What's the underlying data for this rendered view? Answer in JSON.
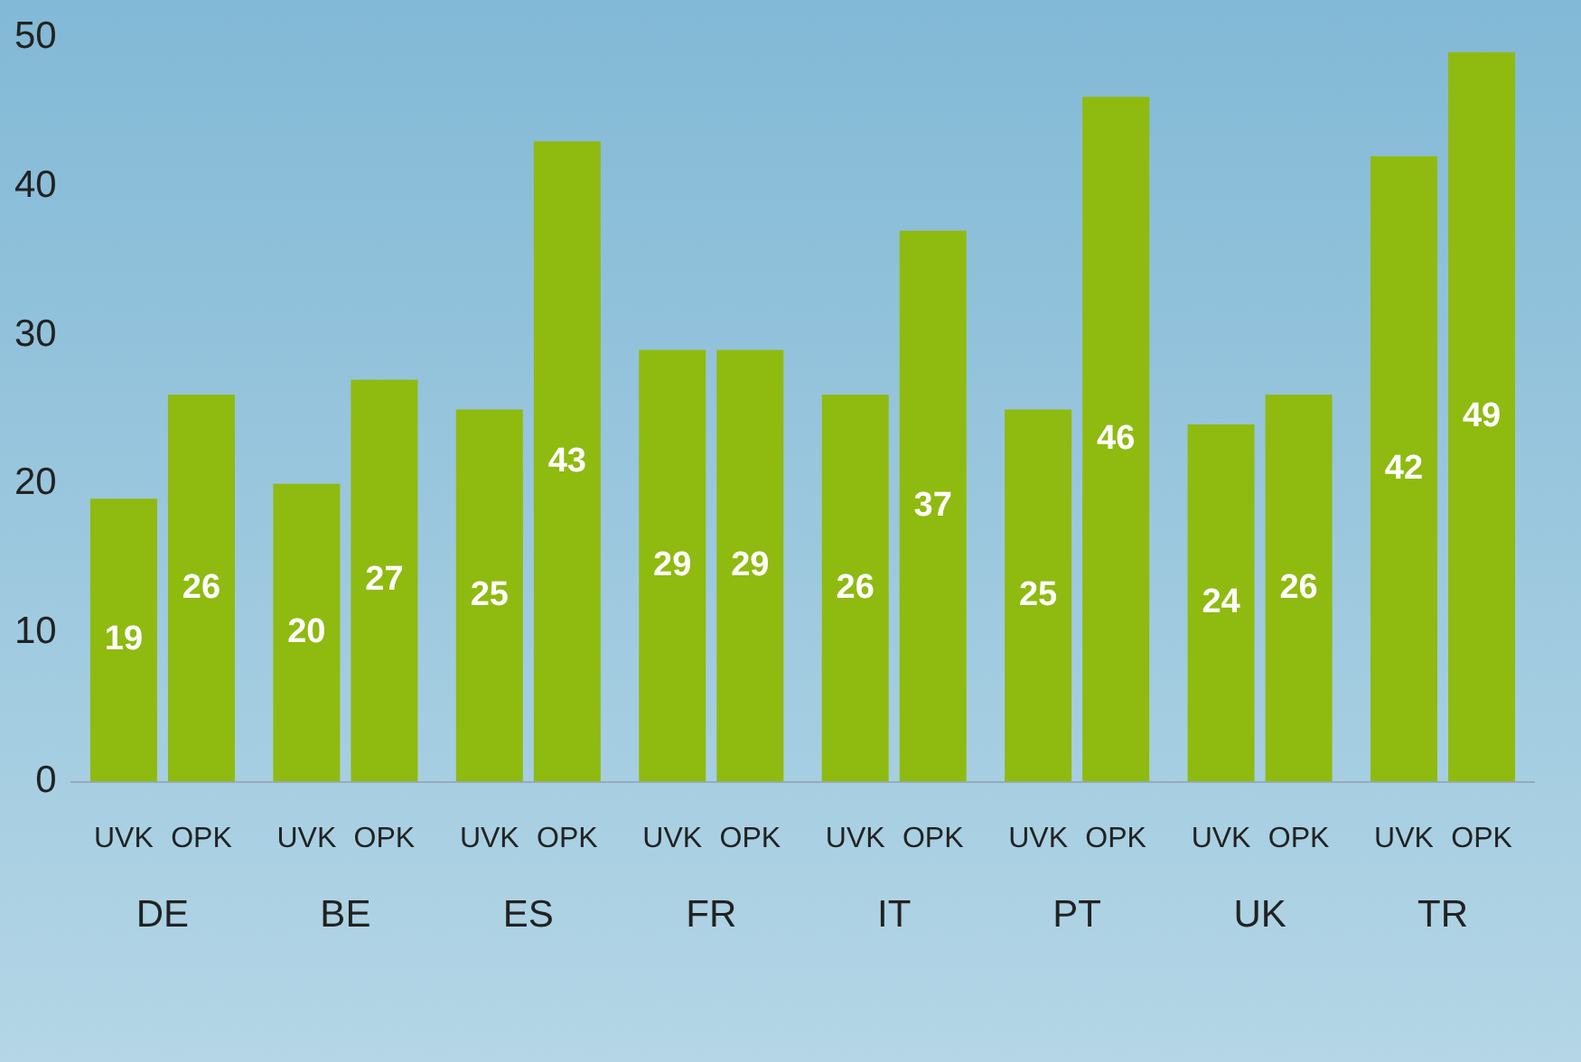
{
  "chart_data": {
    "type": "bar",
    "categories": [
      "DE",
      "BE",
      "ES",
      "FR",
      "IT",
      "PT",
      "UK",
      "TR"
    ],
    "series": [
      {
        "name": "UVK",
        "color": "#8fba10",
        "values": [
          19,
          20,
          25,
          29,
          26,
          25,
          24,
          42
        ]
      },
      {
        "name": "OPK",
        "color": "#8fba10",
        "values": [
          26,
          27,
          43,
          29,
          37,
          46,
          26,
          49
        ]
      }
    ],
    "ylim": [
      0,
      50
    ],
    "yticks": [
      0,
      10,
      20,
      30,
      40,
      50
    ],
    "grid": false,
    "legend": false,
    "data_labels": true
  }
}
